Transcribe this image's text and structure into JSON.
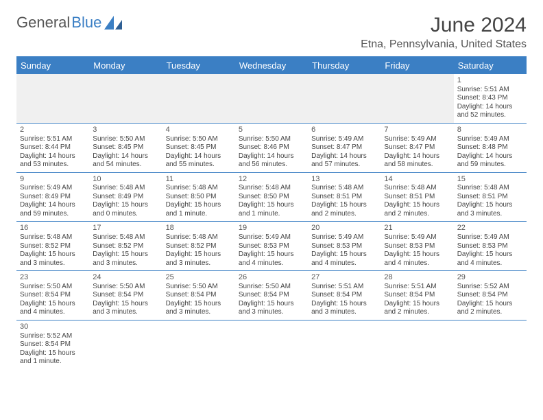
{
  "logo": {
    "text1": "General",
    "text2": "Blue"
  },
  "title": "June 2024",
  "location": "Etna, Pennsylvania, United States",
  "colors": {
    "accent": "#3b7fc4",
    "text": "#444444",
    "bg": "#ffffff"
  },
  "dayNames": [
    "Sunday",
    "Monday",
    "Tuesday",
    "Wednesday",
    "Thursday",
    "Friday",
    "Saturday"
  ],
  "weeks": [
    [
      null,
      null,
      null,
      null,
      null,
      null,
      {
        "n": "1",
        "sr": "Sunrise: 5:51 AM",
        "ss": "Sunset: 8:43 PM",
        "dl": "Daylight: 14 hours and 52 minutes."
      }
    ],
    [
      {
        "n": "2",
        "sr": "Sunrise: 5:51 AM",
        "ss": "Sunset: 8:44 PM",
        "dl": "Daylight: 14 hours and 53 minutes."
      },
      {
        "n": "3",
        "sr": "Sunrise: 5:50 AM",
        "ss": "Sunset: 8:45 PM",
        "dl": "Daylight: 14 hours and 54 minutes."
      },
      {
        "n": "4",
        "sr": "Sunrise: 5:50 AM",
        "ss": "Sunset: 8:45 PM",
        "dl": "Daylight: 14 hours and 55 minutes."
      },
      {
        "n": "5",
        "sr": "Sunrise: 5:50 AM",
        "ss": "Sunset: 8:46 PM",
        "dl": "Daylight: 14 hours and 56 minutes."
      },
      {
        "n": "6",
        "sr": "Sunrise: 5:49 AM",
        "ss": "Sunset: 8:47 PM",
        "dl": "Daylight: 14 hours and 57 minutes."
      },
      {
        "n": "7",
        "sr": "Sunrise: 5:49 AM",
        "ss": "Sunset: 8:47 PM",
        "dl": "Daylight: 14 hours and 58 minutes."
      },
      {
        "n": "8",
        "sr": "Sunrise: 5:49 AM",
        "ss": "Sunset: 8:48 PM",
        "dl": "Daylight: 14 hours and 59 minutes."
      }
    ],
    [
      {
        "n": "9",
        "sr": "Sunrise: 5:49 AM",
        "ss": "Sunset: 8:49 PM",
        "dl": "Daylight: 14 hours and 59 minutes."
      },
      {
        "n": "10",
        "sr": "Sunrise: 5:48 AM",
        "ss": "Sunset: 8:49 PM",
        "dl": "Daylight: 15 hours and 0 minutes."
      },
      {
        "n": "11",
        "sr": "Sunrise: 5:48 AM",
        "ss": "Sunset: 8:50 PM",
        "dl": "Daylight: 15 hours and 1 minute."
      },
      {
        "n": "12",
        "sr": "Sunrise: 5:48 AM",
        "ss": "Sunset: 8:50 PM",
        "dl": "Daylight: 15 hours and 1 minute."
      },
      {
        "n": "13",
        "sr": "Sunrise: 5:48 AM",
        "ss": "Sunset: 8:51 PM",
        "dl": "Daylight: 15 hours and 2 minutes."
      },
      {
        "n": "14",
        "sr": "Sunrise: 5:48 AM",
        "ss": "Sunset: 8:51 PM",
        "dl": "Daylight: 15 hours and 2 minutes."
      },
      {
        "n": "15",
        "sr": "Sunrise: 5:48 AM",
        "ss": "Sunset: 8:51 PM",
        "dl": "Daylight: 15 hours and 3 minutes."
      }
    ],
    [
      {
        "n": "16",
        "sr": "Sunrise: 5:48 AM",
        "ss": "Sunset: 8:52 PM",
        "dl": "Daylight: 15 hours and 3 minutes."
      },
      {
        "n": "17",
        "sr": "Sunrise: 5:48 AM",
        "ss": "Sunset: 8:52 PM",
        "dl": "Daylight: 15 hours and 3 minutes."
      },
      {
        "n": "18",
        "sr": "Sunrise: 5:48 AM",
        "ss": "Sunset: 8:52 PM",
        "dl": "Daylight: 15 hours and 3 minutes."
      },
      {
        "n": "19",
        "sr": "Sunrise: 5:49 AM",
        "ss": "Sunset: 8:53 PM",
        "dl": "Daylight: 15 hours and 4 minutes."
      },
      {
        "n": "20",
        "sr": "Sunrise: 5:49 AM",
        "ss": "Sunset: 8:53 PM",
        "dl": "Daylight: 15 hours and 4 minutes."
      },
      {
        "n": "21",
        "sr": "Sunrise: 5:49 AM",
        "ss": "Sunset: 8:53 PM",
        "dl": "Daylight: 15 hours and 4 minutes."
      },
      {
        "n": "22",
        "sr": "Sunrise: 5:49 AM",
        "ss": "Sunset: 8:53 PM",
        "dl": "Daylight: 15 hours and 4 minutes."
      }
    ],
    [
      {
        "n": "23",
        "sr": "Sunrise: 5:50 AM",
        "ss": "Sunset: 8:54 PM",
        "dl": "Daylight: 15 hours and 4 minutes."
      },
      {
        "n": "24",
        "sr": "Sunrise: 5:50 AM",
        "ss": "Sunset: 8:54 PM",
        "dl": "Daylight: 15 hours and 3 minutes."
      },
      {
        "n": "25",
        "sr": "Sunrise: 5:50 AM",
        "ss": "Sunset: 8:54 PM",
        "dl": "Daylight: 15 hours and 3 minutes."
      },
      {
        "n": "26",
        "sr": "Sunrise: 5:50 AM",
        "ss": "Sunset: 8:54 PM",
        "dl": "Daylight: 15 hours and 3 minutes."
      },
      {
        "n": "27",
        "sr": "Sunrise: 5:51 AM",
        "ss": "Sunset: 8:54 PM",
        "dl": "Daylight: 15 hours and 3 minutes."
      },
      {
        "n": "28",
        "sr": "Sunrise: 5:51 AM",
        "ss": "Sunset: 8:54 PM",
        "dl": "Daylight: 15 hours and 2 minutes."
      },
      {
        "n": "29",
        "sr": "Sunrise: 5:52 AM",
        "ss": "Sunset: 8:54 PM",
        "dl": "Daylight: 15 hours and 2 minutes."
      }
    ],
    [
      {
        "n": "30",
        "sr": "Sunrise: 5:52 AM",
        "ss": "Sunset: 8:54 PM",
        "dl": "Daylight: 15 hours and 1 minute."
      },
      null,
      null,
      null,
      null,
      null,
      null
    ]
  ]
}
